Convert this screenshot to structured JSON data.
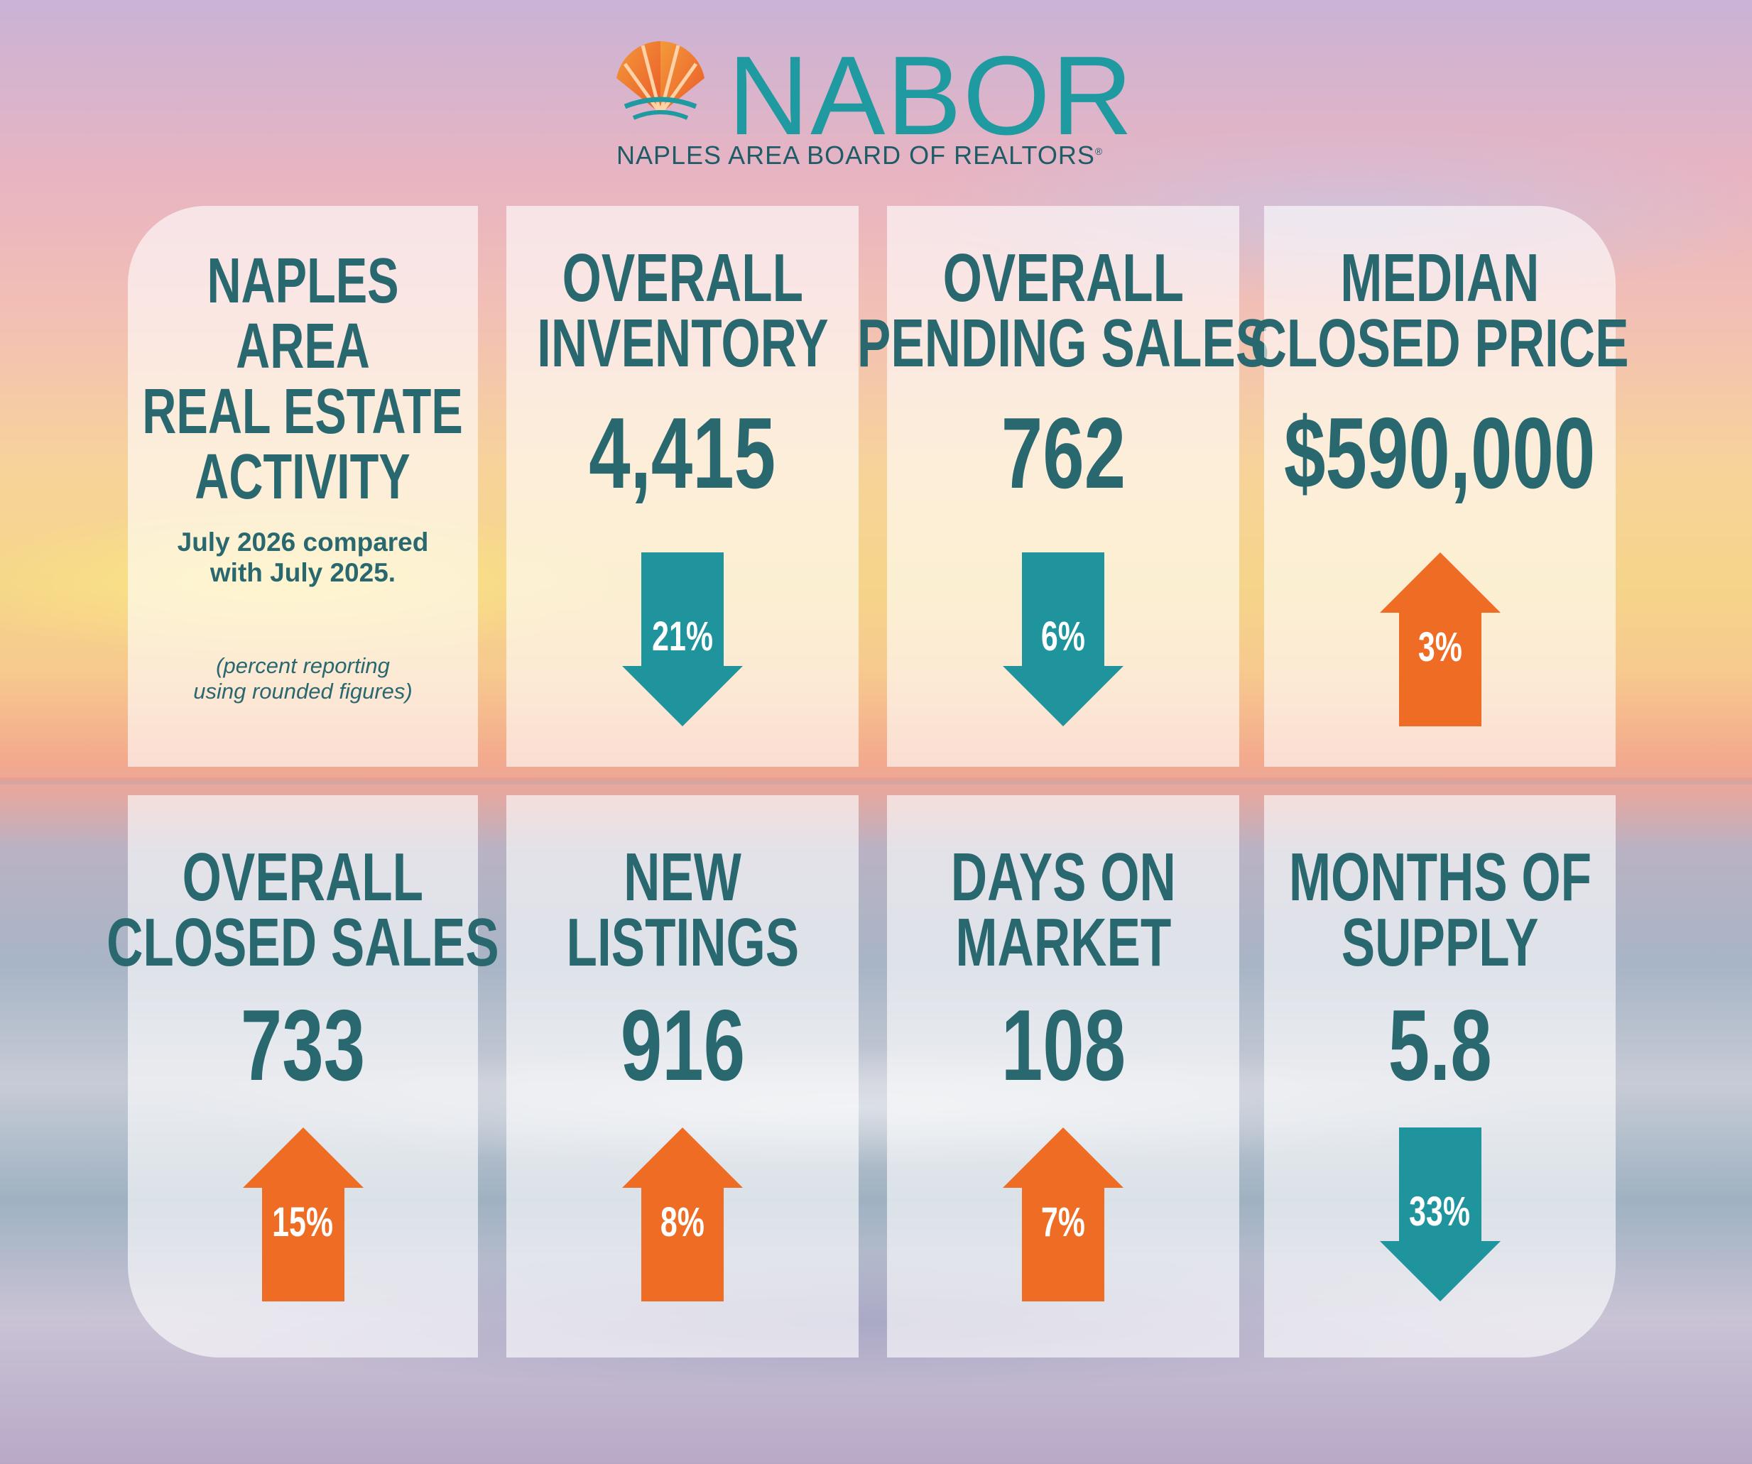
{
  "header": {
    "brand": "NABOR",
    "tagline": "NAPLES AREA BOARD OF REALTORS",
    "tagline_mark": "®"
  },
  "intro": {
    "title_lines": [
      "NAPLES",
      "AREA",
      "REAL ESTATE",
      "ACTIVITY"
    ],
    "subtitle_lines": [
      "July 2026 compared",
      "with July 2025."
    ],
    "note_lines": [
      "(percent reporting",
      "using rounded figures)"
    ]
  },
  "colors": {
    "teal_text": "#2a6870",
    "brand_teal": "#1f9aa1",
    "arrow_down": "#1f949c",
    "arrow_up": "#ef6c25"
  },
  "stats": [
    {
      "title_lines": [
        "OVERALL",
        "INVENTORY"
      ],
      "value": "4,415",
      "change": "21%",
      "direction": "down"
    },
    {
      "title_lines": [
        "OVERALL",
        "PENDING SALES"
      ],
      "value": "762",
      "change": "6%",
      "direction": "down"
    },
    {
      "title_lines": [
        "MEDIAN",
        "CLOSED PRICE"
      ],
      "value": "$590,000",
      "change": "3%",
      "direction": "up"
    },
    {
      "title_lines": [
        "OVERALL",
        "CLOSED SALES"
      ],
      "value": "733",
      "change": "15%",
      "direction": "up"
    },
    {
      "title_lines": [
        "NEW",
        "LISTINGS"
      ],
      "value": "916",
      "change": "8%",
      "direction": "up"
    },
    {
      "title_lines": [
        "DAYS ON",
        "MARKET"
      ],
      "value": "108",
      "change": "7%",
      "direction": "up"
    },
    {
      "title_lines": [
        "MONTHS OF",
        "SUPPLY"
      ],
      "value": "5.8",
      "change": "33%",
      "direction": "down"
    }
  ]
}
